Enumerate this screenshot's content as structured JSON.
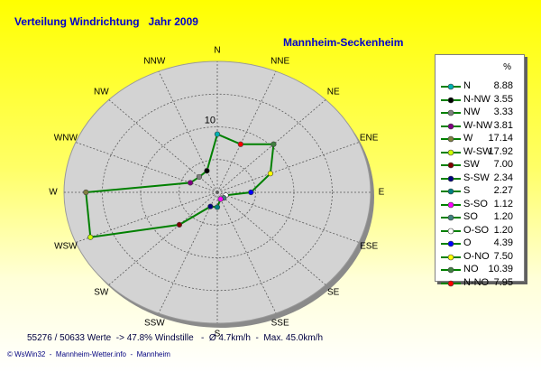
{
  "chart_data": {
    "type": "radar",
    "title": "Verteilung Windrichtung   Jahr 2009",
    "subtitle": "Mannheim-Seckenheim",
    "legend_unit": "%",
    "grid": true,
    "legend_placement": "right",
    "ring_label": "10",
    "ring_label_value": 10,
    "rmax": 20,
    "line_color": "#008000",
    "disk_color": "#d3d3d3",
    "axis_directions": [
      "N",
      "NNE",
      "NE",
      "ENE",
      "E",
      "ESE",
      "SE",
      "SSE",
      "S",
      "SSW",
      "SW",
      "WSW",
      "W",
      "WNW",
      "NW",
      "NNW"
    ],
    "series": [
      {
        "legend": "N",
        "compass": "N",
        "value": 8.88,
        "color": "#00b0b0"
      },
      {
        "legend": "N-NW",
        "compass": "NNW",
        "value": 3.55,
        "color": "#000000"
      },
      {
        "legend": "NW",
        "compass": "NW",
        "value": 3.33,
        "color": "#808080"
      },
      {
        "legend": "W-NW",
        "compass": "WNW",
        "value": 3.81,
        "color": "#800080"
      },
      {
        "legend": "W",
        "compass": "W",
        "value": 17.14,
        "color": "#808040"
      },
      {
        "legend": "W-SW",
        "compass": "WSW",
        "value": 17.92,
        "color": "#ccff00"
      },
      {
        "legend": "SW",
        "compass": "SW",
        "value": 7.0,
        "color": "#800000"
      },
      {
        "legend": "S-SW",
        "compass": "SSW",
        "value": 2.34,
        "color": "#000080"
      },
      {
        "legend": "S",
        "compass": "S",
        "value": 2.27,
        "color": "#008080"
      },
      {
        "legend": "S-SO",
        "compass": "SSE",
        "value": 1.12,
        "color": "#ff00ff"
      },
      {
        "legend": "SO",
        "compass": "SE",
        "value": 1.2,
        "color": "#408080"
      },
      {
        "legend": "O-SO",
        "compass": "ESE",
        "value": 1.2,
        "color": "#ffffff"
      },
      {
        "legend": "O",
        "compass": "E",
        "value": 4.39,
        "color": "#0000ff"
      },
      {
        "legend": "O-NO",
        "compass": "ENE",
        "value": 7.5,
        "color": "#ffff00"
      },
      {
        "legend": "NO",
        "compass": "NE",
        "value": 10.39,
        "color": "#408040"
      },
      {
        "legend": "N-NO",
        "compass": "NNE",
        "value": 7.95,
        "color": "#ff0000"
      }
    ],
    "footer_stats": "55276 / 50633 Werte  -> 47.8% Windstille   -  Ø 4.7km/h  -  Max. 45.0km/h",
    "footer_credit": "© WsWin32  -  Mannheim-Wetter.info  -  Mannheim"
  }
}
